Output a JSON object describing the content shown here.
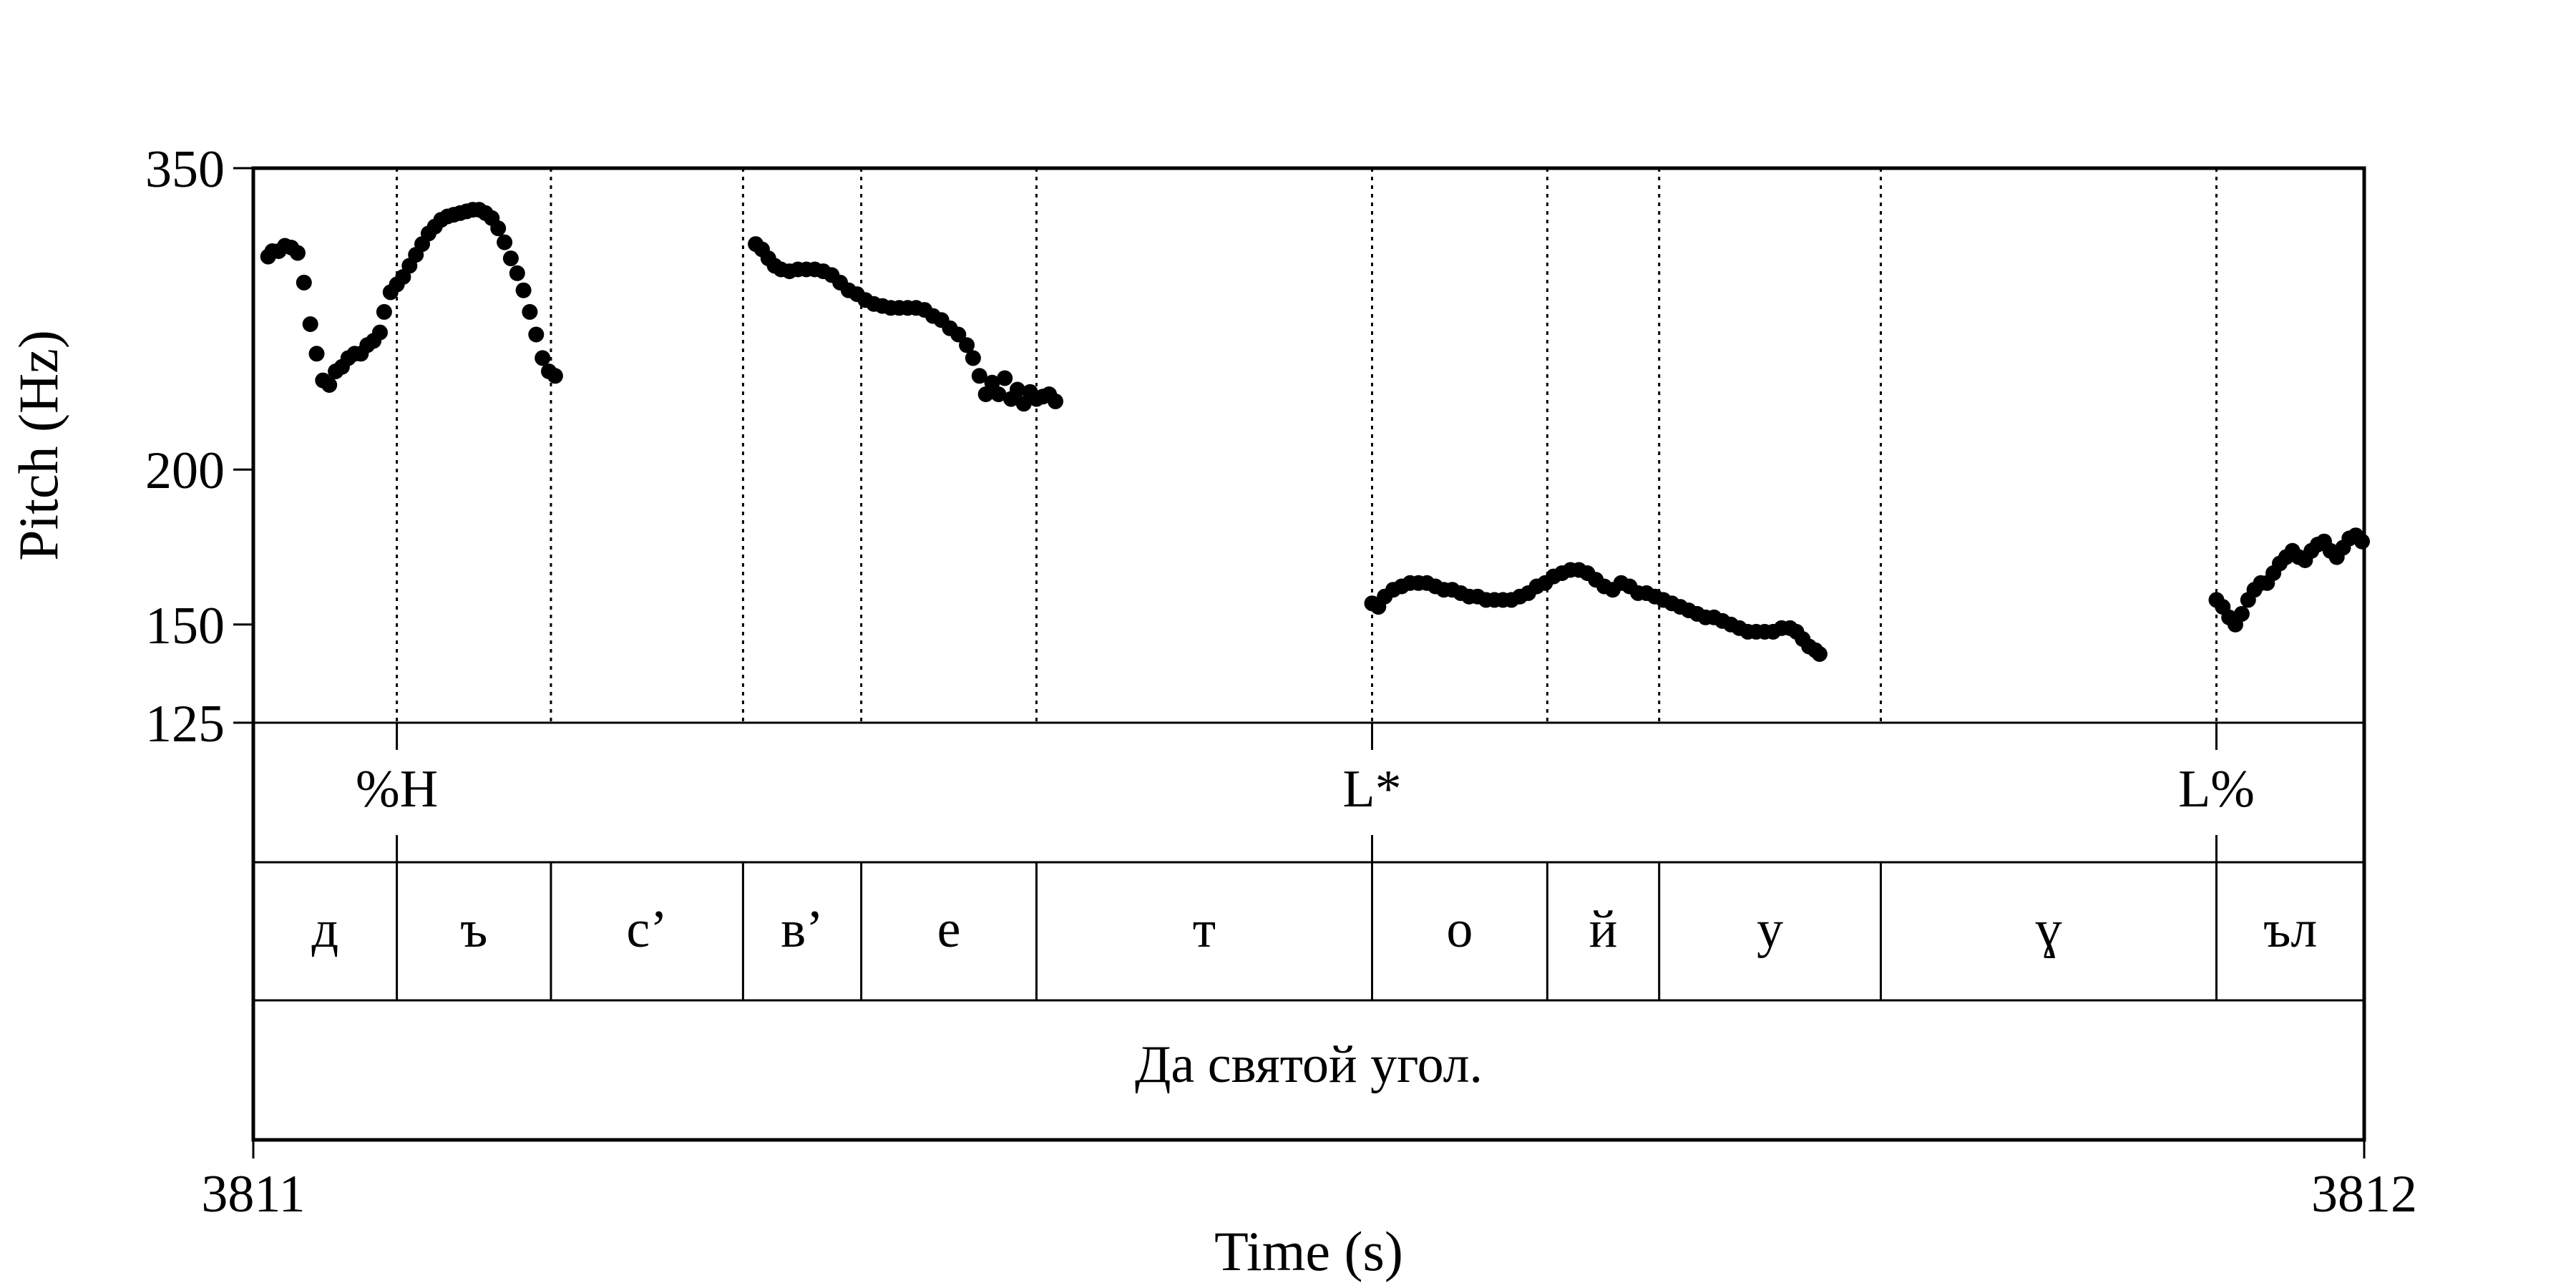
{
  "chart_data": {
    "type": "scatter",
    "xlabel": "Time (s)",
    "ylabel": "Pitch (Hz)",
    "xlim": [
      3811,
      3812
    ],
    "ylim": [
      125,
      350
    ],
    "yscale": "log",
    "x_ticks": [
      "3811",
      "3812"
    ],
    "y_ticks": [
      {
        "value": 350,
        "label": "350"
      },
      {
        "value": 200,
        "label": "200"
      },
      {
        "value": 150,
        "label": "150"
      },
      {
        "value": 125,
        "label": "125"
      }
    ],
    "grid": false,
    "point_color": "#000000",
    "series": [
      {
        "points": [
          [
            3811.007,
            297
          ],
          [
            3811.009,
            300
          ],
          [
            3811.012,
            300
          ],
          [
            3811.015,
            303
          ],
          [
            3811.018,
            302
          ],
          [
            3811.021,
            299
          ],
          [
            3811.024,
            283
          ],
          [
            3811.027,
            262
          ],
          [
            3811.03,
            248
          ],
          [
            3811.033,
            236
          ],
          [
            3811.036,
            234
          ],
          [
            3811.039,
            240
          ],
          [
            3811.042,
            242
          ],
          [
            3811.045,
            246
          ],
          [
            3811.048,
            248
          ],
          [
            3811.051,
            248
          ],
          [
            3811.054,
            252
          ],
          [
            3811.057,
            254
          ],
          [
            3811.06,
            258
          ],
          [
            3811.062,
            268
          ],
          [
            3811.065,
            278
          ],
          [
            3811.068,
            282
          ],
          [
            3811.071,
            286
          ],
          [
            3811.074,
            292
          ],
          [
            3811.077,
            298
          ],
          [
            3811.08,
            304
          ],
          [
            3811.083,
            310
          ],
          [
            3811.086,
            314
          ],
          [
            3811.089,
            318
          ],
          [
            3811.092,
            320
          ],
          [
            3811.095,
            321
          ],
          [
            3811.098,
            322
          ],
          [
            3811.101,
            323
          ],
          [
            3811.104,
            324
          ],
          [
            3811.107,
            324
          ],
          [
            3811.11,
            322
          ],
          [
            3811.113,
            319
          ],
          [
            3811.116,
            313
          ],
          [
            3811.119,
            305
          ],
          [
            3811.122,
            296
          ],
          [
            3811.125,
            288
          ],
          [
            3811.128,
            279
          ],
          [
            3811.131,
            268
          ],
          [
            3811.134,
            257
          ],
          [
            3811.137,
            246
          ],
          [
            3811.14,
            240
          ],
          [
            3811.143,
            238
          ],
          [
            3811.238,
            304
          ],
          [
            3811.241,
            301
          ],
          [
            3811.244,
            296
          ],
          [
            3811.247,
            292
          ],
          [
            3811.25,
            290
          ],
          [
            3811.254,
            289
          ],
          [
            3811.258,
            290
          ],
          [
            3811.262,
            290
          ],
          [
            3811.266,
            290
          ],
          [
            3811.27,
            289
          ],
          [
            3811.274,
            287
          ],
          [
            3811.278,
            283
          ],
          [
            3811.282,
            279
          ],
          [
            3811.286,
            277
          ],
          [
            3811.29,
            274
          ],
          [
            3811.294,
            272
          ],
          [
            3811.298,
            271
          ],
          [
            3811.302,
            270
          ],
          [
            3811.306,
            270
          ],
          [
            3811.31,
            270
          ],
          [
            3811.314,
            270
          ],
          [
            3811.318,
            269
          ],
          [
            3811.322,
            266
          ],
          [
            3811.326,
            264
          ],
          [
            3811.33,
            260
          ],
          [
            3811.334,
            257
          ],
          [
            3811.338,
            252
          ],
          [
            3811.341,
            246
          ],
          [
            3811.344,
            238
          ],
          [
            3811.347,
            230
          ],
          [
            3811.35,
            235
          ],
          [
            3811.353,
            230
          ],
          [
            3811.356,
            237
          ],
          [
            3811.359,
            228
          ],
          [
            3811.362,
            232
          ],
          [
            3811.365,
            226
          ],
          [
            3811.368,
            231
          ],
          [
            3811.371,
            228
          ],
          [
            3811.374,
            229
          ],
          [
            3811.377,
            230
          ],
          [
            3811.38,
            227
          ],
          [
            3811.53,
            156
          ],
          [
            3811.533,
            155
          ],
          [
            3811.536,
            158
          ],
          [
            3811.54,
            160
          ],
          [
            3811.544,
            161
          ],
          [
            3811.548,
            162
          ],
          [
            3811.552,
            162
          ],
          [
            3811.556,
            162
          ],
          [
            3811.56,
            161
          ],
          [
            3811.564,
            160
          ],
          [
            3811.568,
            160
          ],
          [
            3811.572,
            159
          ],
          [
            3811.576,
            158
          ],
          [
            3811.58,
            158
          ],
          [
            3811.584,
            157
          ],
          [
            3811.588,
            157
          ],
          [
            3811.592,
            157
          ],
          [
            3811.596,
            157
          ],
          [
            3811.6,
            158
          ],
          [
            3811.604,
            159
          ],
          [
            3811.608,
            161
          ],
          [
            3811.612,
            162
          ],
          [
            3811.616,
            164
          ],
          [
            3811.62,
            165
          ],
          [
            3811.624,
            166
          ],
          [
            3811.628,
            166
          ],
          [
            3811.632,
            165
          ],
          [
            3811.636,
            163
          ],
          [
            3811.64,
            161
          ],
          [
            3811.644,
            160
          ],
          [
            3811.648,
            162
          ],
          [
            3811.652,
            161
          ],
          [
            3811.656,
            159
          ],
          [
            3811.66,
            159
          ],
          [
            3811.664,
            158
          ],
          [
            3811.668,
            157
          ],
          [
            3811.672,
            156
          ],
          [
            3811.676,
            155
          ],
          [
            3811.68,
            154
          ],
          [
            3811.684,
            153
          ],
          [
            3811.688,
            152
          ],
          [
            3811.692,
            152
          ],
          [
            3811.696,
            151
          ],
          [
            3811.7,
            150
          ],
          [
            3811.704,
            149
          ],
          [
            3811.708,
            148
          ],
          [
            3811.712,
            148
          ],
          [
            3811.716,
            148
          ],
          [
            3811.72,
            148
          ],
          [
            3811.724,
            149
          ],
          [
            3811.728,
            149
          ],
          [
            3811.731,
            148
          ],
          [
            3811.734,
            146
          ],
          [
            3811.737,
            144
          ],
          [
            3811.74,
            143
          ],
          [
            3811.742,
            142
          ],
          [
            3811.93,
            157
          ],
          [
            3811.933,
            155
          ],
          [
            3811.936,
            152
          ],
          [
            3811.939,
            150
          ],
          [
            3811.942,
            153
          ],
          [
            3811.945,
            157
          ],
          [
            3811.948,
            160
          ],
          [
            3811.951,
            162
          ],
          [
            3811.954,
            162
          ],
          [
            3811.957,
            165
          ],
          [
            3811.96,
            168
          ],
          [
            3811.963,
            170
          ],
          [
            3811.966,
            172
          ],
          [
            3811.969,
            170
          ],
          [
            3811.972,
            169
          ],
          [
            3811.975,
            172
          ],
          [
            3811.978,
            174
          ],
          [
            3811.981,
            175
          ],
          [
            3811.984,
            172
          ],
          [
            3811.987,
            170
          ],
          [
            3811.99,
            173
          ],
          [
            3811.993,
            176
          ],
          [
            3811.996,
            177
          ],
          [
            3811.999,
            175
          ]
        ]
      }
    ],
    "tiers": [
      {
        "name": "tones",
        "labels": [
          {
            "text": "%H",
            "time": 3811.068
          },
          {
            "text": "L*",
            "time": 3811.53
          },
          {
            "text": "L%",
            "time": 3811.93
          }
        ]
      },
      {
        "name": "segments",
        "boundaries": [
          3811.068,
          3811.141,
          3811.232,
          3811.288,
          3811.371,
          3811.53,
          3811.613,
          3811.666,
          3811.771,
          3811.93
        ],
        "labels": [
          "д",
          "ъ",
          "с’",
          "в’",
          "е",
          "т",
          "о",
          "й",
          "у",
          "ɣ",
          "ъл"
        ]
      },
      {
        "name": "sentence",
        "labels": [
          {
            "text": "Да святой угол.",
            "time": 3811.5
          }
        ]
      }
    ],
    "dotted_guides": [
      3811.068,
      3811.141,
      3811.232,
      3811.288,
      3811.371,
      3811.53,
      3811.613,
      3811.666,
      3811.771,
      3811.93
    ]
  }
}
